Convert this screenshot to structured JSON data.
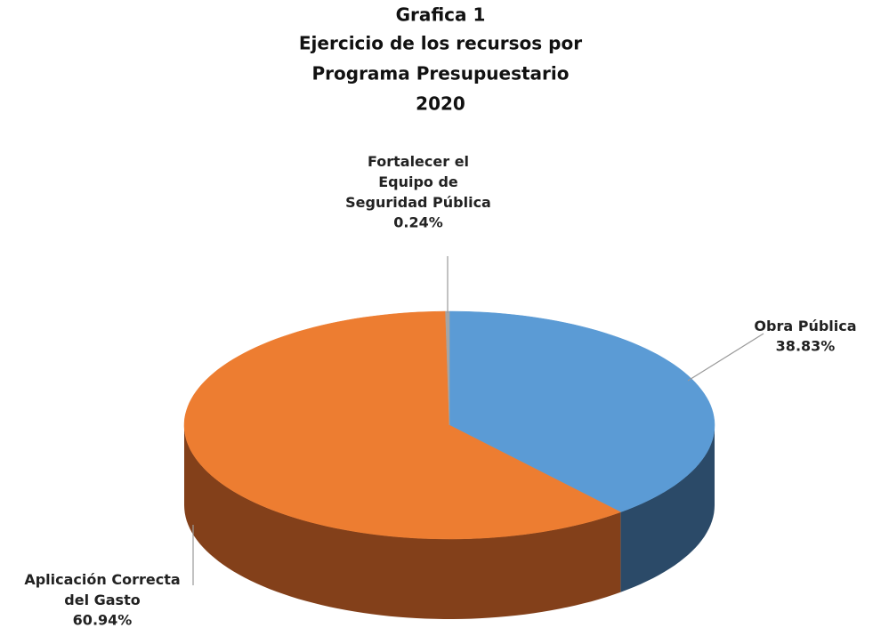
{
  "chart_data": {
    "type": "pie",
    "title": [
      "Grafica 1",
      "Ejercicio de los recursos por",
      "Programa Presupuestario",
      "2020"
    ],
    "categories": [
      "Obra Pública",
      "Aplicación Correcta del Gasto",
      "Fortalecer el Equipo de Seguridad Pública"
    ],
    "values": [
      38.83,
      60.94,
      0.24
    ],
    "value_labels": [
      "38.83%",
      "60.94%",
      "0.24%"
    ],
    "colors": [
      "#5b9bd5",
      "#ed7d31",
      "#a5a5a5"
    ],
    "side_colors": [
      "#2b4a68",
      "#83401a",
      "#6b6b6b"
    ]
  }
}
